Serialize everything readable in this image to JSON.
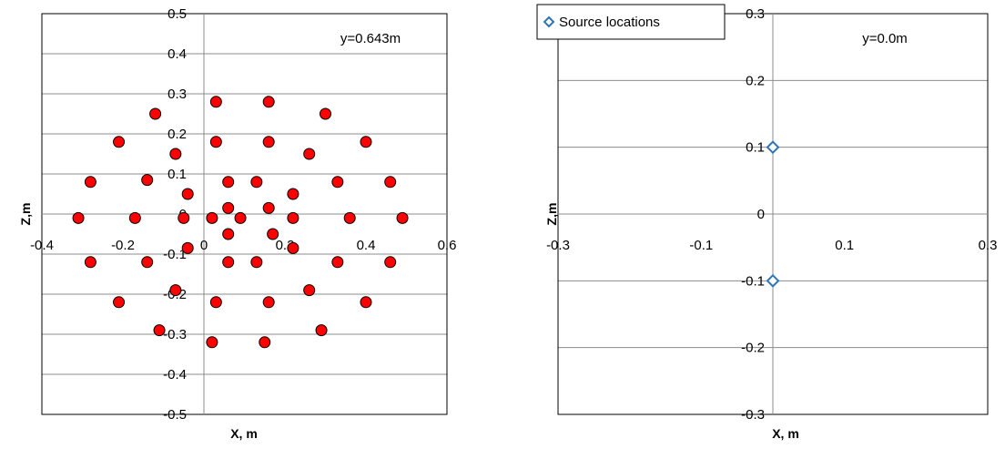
{
  "chart_data": [
    {
      "type": "scatter",
      "title": "",
      "xlabel": "X, m",
      "ylabel": "Z,m",
      "xlim": [
        -0.4,
        0.6
      ],
      "ylim": [
        -0.5,
        0.5
      ],
      "x_ticks": [
        "-0.4",
        "-0.2",
        "0",
        "0.2",
        "0.4",
        "0.6"
      ],
      "y_ticks": [
        "-0.5",
        "-0.4",
        "-0.3",
        "-0.2",
        "-0.1",
        "0",
        "0.1",
        "0.2",
        "0.3",
        "0.4",
        "0.5"
      ],
      "annotation": "y=0.643m",
      "grid": "horizontal",
      "series": [
        {
          "color": "#ff0000",
          "marker": "circle",
          "points": [
            [
              0.03,
              0.28
            ],
            [
              0.16,
              0.28
            ],
            [
              0.3,
              0.25
            ],
            [
              -0.12,
              0.25
            ],
            [
              -0.21,
              0.18
            ],
            [
              0.03,
              0.18
            ],
            [
              0.16,
              0.18
            ],
            [
              0.4,
              0.18
            ],
            [
              -0.07,
              0.15
            ],
            [
              0.26,
              0.15
            ],
            [
              -0.28,
              0.08
            ],
            [
              -0.14,
              0.085
            ],
            [
              0.06,
              0.08
            ],
            [
              0.13,
              0.08
            ],
            [
              0.33,
              0.08
            ],
            [
              0.46,
              0.08
            ],
            [
              -0.04,
              0.05
            ],
            [
              0.22,
              0.05
            ],
            [
              0.06,
              0.015
            ],
            [
              0.16,
              0.015
            ],
            [
              -0.31,
              -0.01
            ],
            [
              -0.17,
              -0.01
            ],
            [
              -0.05,
              -0.01
            ],
            [
              0.02,
              -0.01
            ],
            [
              0.09,
              -0.01
            ],
            [
              0.22,
              -0.01
            ],
            [
              0.36,
              -0.01
            ],
            [
              0.49,
              -0.01
            ],
            [
              0.06,
              -0.05
            ],
            [
              0.17,
              -0.05
            ],
            [
              -0.04,
              -0.085
            ],
            [
              0.22,
              -0.085
            ],
            [
              -0.28,
              -0.12
            ],
            [
              -0.14,
              -0.12
            ],
            [
              0.06,
              -0.12
            ],
            [
              0.13,
              -0.12
            ],
            [
              0.33,
              -0.12
            ],
            [
              0.46,
              -0.12
            ],
            [
              -0.07,
              -0.19
            ],
            [
              0.26,
              -0.19
            ],
            [
              -0.21,
              -0.22
            ],
            [
              0.03,
              -0.22
            ],
            [
              0.16,
              -0.22
            ],
            [
              0.4,
              -0.22
            ],
            [
              -0.11,
              -0.29
            ],
            [
              0.29,
              -0.29
            ],
            [
              0.02,
              -0.32
            ],
            [
              0.15,
              -0.32
            ]
          ]
        }
      ]
    },
    {
      "type": "scatter",
      "title": "",
      "xlabel": "X, m",
      "ylabel": "Z,m",
      "xlim": [
        -0.3,
        0.3
      ],
      "ylim": [
        -0.3,
        0.3
      ],
      "x_ticks": [
        "-0.3",
        "-0.1",
        "0.1",
        "0.3"
      ],
      "y_ticks": [
        "-0.3",
        "-0.2",
        "-0.1",
        "0",
        "0.1",
        "0.2",
        "0.3"
      ],
      "annotation": "y=0.0m",
      "grid": "horizontal",
      "legend": {
        "position": "top-left",
        "entries": [
          "Source locations"
        ]
      },
      "series": [
        {
          "name": "Source locations",
          "color": "#2e75b6",
          "marker": "diamond-open",
          "points": [
            [
              0.0,
              0.1
            ],
            [
              0.0,
              -0.1
            ]
          ]
        }
      ]
    }
  ]
}
